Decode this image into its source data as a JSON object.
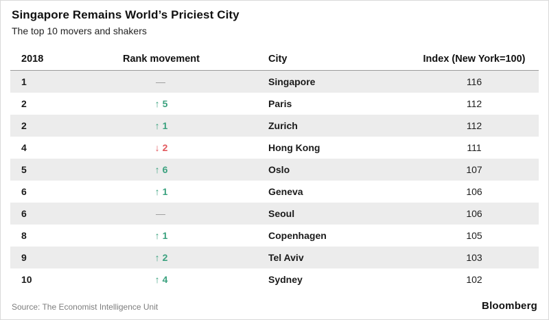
{
  "header": {
    "title": "Singapore Remains World’s Priciest City",
    "subtitle": "The top 10 movers and shakers"
  },
  "footer": {
    "source": "Source: The Economist Intelligence Unit",
    "brand": "Bloomberg"
  },
  "glyphs": {
    "up_arrow": "↑",
    "down_arrow": "↓",
    "no_change": "—"
  },
  "colors": {
    "up_green": "#3aa17e",
    "down_red": "#e2575c",
    "neutral_gray": "#9b9b9b",
    "row_stripe": "#ececec",
    "text": "#1a1a1a",
    "source_text": "#7d7d7d"
  },
  "chart_data": {
    "type": "table",
    "title": "Singapore Remains World’s Priciest City",
    "subtitle": "The top 10 movers and shakers",
    "columns": [
      "2018",
      "Rank movement",
      "City",
      "Index (New York=100)"
    ],
    "rows": [
      {
        "rank": "1",
        "direction": "none",
        "movement": "",
        "city": "Singapore",
        "index": "116"
      },
      {
        "rank": "2",
        "direction": "up",
        "movement": "5",
        "city": "Paris",
        "index": "112"
      },
      {
        "rank": "2",
        "direction": "up",
        "movement": "1",
        "city": "Zurich",
        "index": "112"
      },
      {
        "rank": "4",
        "direction": "down",
        "movement": "2",
        "city": "Hong Kong",
        "index": "111"
      },
      {
        "rank": "5",
        "direction": "up",
        "movement": "6",
        "city": "Oslo",
        "index": "107"
      },
      {
        "rank": "6",
        "direction": "up",
        "movement": "1",
        "city": "Geneva",
        "index": "106"
      },
      {
        "rank": "6",
        "direction": "none",
        "movement": "",
        "city": "Seoul",
        "index": "106"
      },
      {
        "rank": "8",
        "direction": "up",
        "movement": "1",
        "city": "Copenhagen",
        "index": "105"
      },
      {
        "rank": "9",
        "direction": "up",
        "movement": "2",
        "city": "Tel Aviv",
        "index": "103"
      },
      {
        "rank": "10",
        "direction": "up",
        "movement": "4",
        "city": "Sydney",
        "index": "102"
      }
    ],
    "source": "Source: The Economist Intelligence Unit",
    "legend_position": "none",
    "grid": "row-stripes"
  }
}
